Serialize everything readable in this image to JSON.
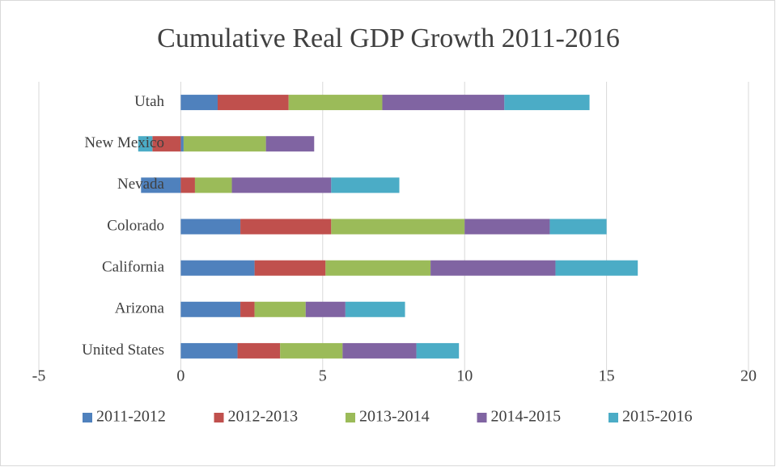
{
  "chart_data": {
    "type": "stacked_bar_horizontal",
    "title": "Cumulative Real GDP Growth 2011-2016",
    "categories": [
      "Utah",
      "New Mexico",
      "Nevada",
      "Colorado",
      "California",
      "Arizona",
      "United States"
    ],
    "series": [
      {
        "name": "2011-2012",
        "color": "#4f81bd",
        "values": [
          1.3,
          0.1,
          -1.4,
          2.1,
          2.6,
          2.1,
          2.0
        ]
      },
      {
        "name": "2012-2013",
        "color": "#c0504d",
        "values": [
          2.5,
          -1.0,
          0.5,
          3.2,
          2.5,
          0.5,
          1.5
        ]
      },
      {
        "name": "2013-2014",
        "color": "#9bbb59",
        "values": [
          3.3,
          2.9,
          1.3,
          4.7,
          3.7,
          1.8,
          2.2
        ]
      },
      {
        "name": "2014-2015",
        "color": "#8064a2",
        "values": [
          4.3,
          1.7,
          3.5,
          3.0,
          4.4,
          1.4,
          2.6
        ]
      },
      {
        "name": "2015-2016",
        "color": "#4bacc6",
        "values": [
          3.0,
          -0.5,
          2.4,
          2.0,
          2.9,
          2.1,
          1.5
        ]
      }
    ],
    "xlim": [
      -5,
      20
    ],
    "xticks": [
      -5,
      0,
      5,
      10,
      15,
      20
    ],
    "grid": true,
    "legend": "bottom"
  }
}
